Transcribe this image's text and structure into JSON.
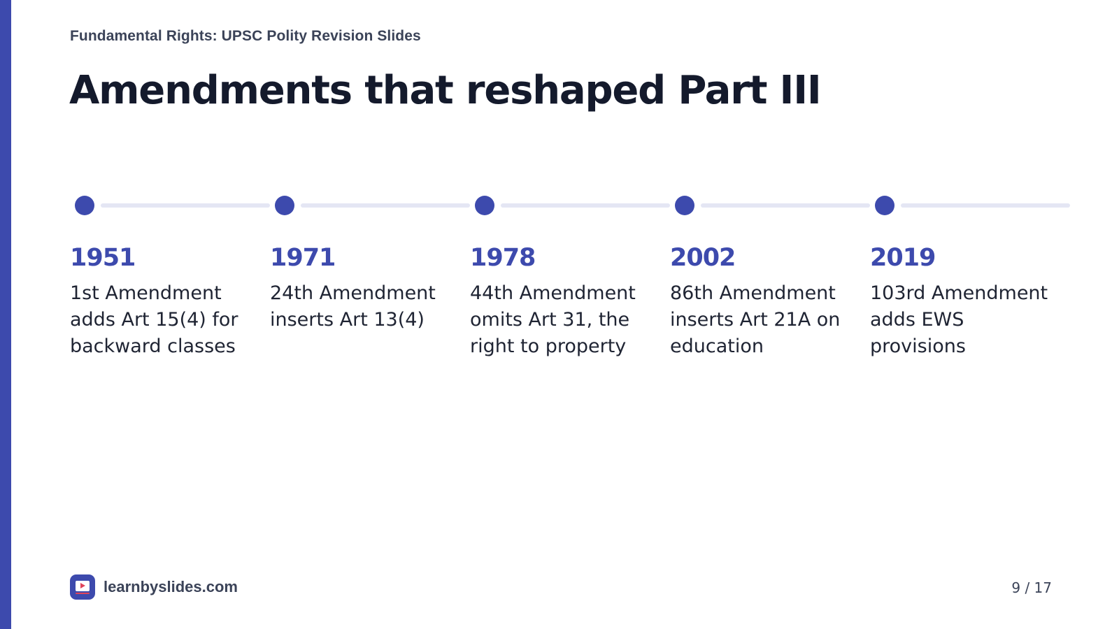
{
  "deck": {
    "title": "Fundamental Rights: UPSC Polity Revision Slides"
  },
  "slide": {
    "title": "Amendments that reshaped Part III"
  },
  "timeline": [
    {
      "year": "1951",
      "description": "1st Amendment adds Art 15(4) for backward classes"
    },
    {
      "year": "1971",
      "description": "24th Amendment inserts Art 13(4)"
    },
    {
      "year": "1978",
      "description": "44th Amendment omits Art 31, the right to property"
    },
    {
      "year": "2002",
      "description": "86th Amendment inserts Art 21A on education"
    },
    {
      "year": "2019",
      "description": "103rd Amendment adds EWS provisions"
    }
  ],
  "footer": {
    "brand": "learnbyslides.com",
    "brand_icon": "play-screen-icon",
    "page": "9 / 17"
  },
  "colors": {
    "accent": "#3d4aad",
    "connector": "#e4e6f4",
    "title": "#141a2c",
    "text": "#1f2433",
    "muted": "#3b4358"
  }
}
